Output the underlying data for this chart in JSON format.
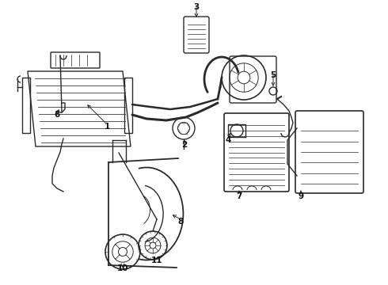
{
  "bg_color": "#ffffff",
  "line_color": "#2a2a2a",
  "figsize": [
    4.9,
    3.6
  ],
  "dpi": 100,
  "label_positions": {
    "1": [
      0.275,
      0.395,
      0.21,
      0.355
    ],
    "2": [
      0.475,
      0.555,
      0.475,
      0.515
    ],
    "3": [
      0.5,
      0.115,
      0.5,
      0.155
    ],
    "4": [
      0.585,
      0.445,
      0.585,
      0.405
    ],
    "5": [
      0.695,
      0.27,
      0.665,
      0.305
    ],
    "6": [
      0.145,
      0.62,
      0.165,
      0.585
    ],
    "7": [
      0.615,
      0.7,
      0.615,
      0.665
    ],
    "8": [
      0.465,
      0.795,
      0.435,
      0.76
    ],
    "9": [
      0.775,
      0.655,
      0.755,
      0.635
    ],
    "10": [
      0.315,
      0.935,
      0.315,
      0.895
    ],
    "11": [
      0.395,
      0.915,
      0.395,
      0.875
    ]
  }
}
